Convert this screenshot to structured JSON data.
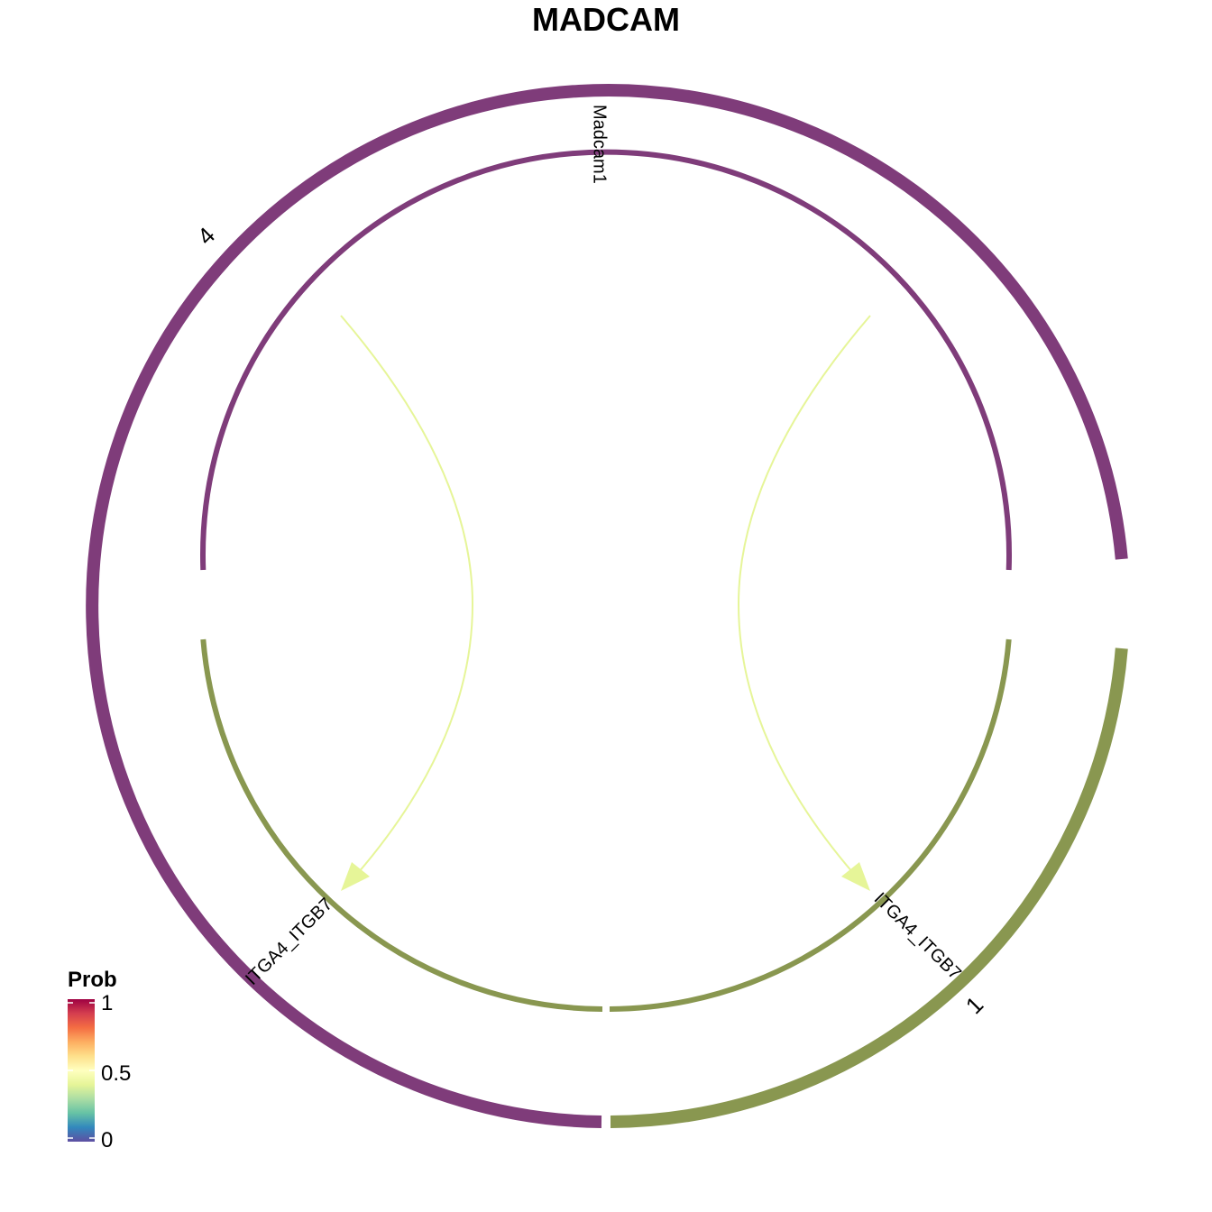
{
  "chart_data": {
    "type": "chord",
    "title": "MADCAM",
    "groups": [
      {
        "name": "4",
        "color": "#7f3c7a"
      },
      {
        "name": "1",
        "color": "#899750"
      }
    ],
    "nodes": [
      {
        "name": "Madcam1",
        "group": "4",
        "role": "ligand"
      },
      {
        "name": "ITGA4_ITGB7",
        "group": "4",
        "role": "receptor"
      },
      {
        "name": "ITGA4_ITGB7",
        "group": "1",
        "role": "receptor"
      }
    ],
    "links": [
      {
        "source": "Madcam1",
        "target_group": "4",
        "target": "ITGA4_ITGB7",
        "prob": 0.5
      },
      {
        "source": "Madcam1",
        "target_group": "1",
        "target": "ITGA4_ITGB7",
        "prob": 0.5
      }
    ],
    "legend": {
      "title": "Prob",
      "ticks": [
        "1",
        "0.5",
        "0"
      ],
      "range": [
        0,
        1
      ],
      "colors": [
        "#5e4fa2",
        "#3288bd",
        "#66c2a5",
        "#abdda4",
        "#e6f598",
        "#ffffbf",
        "#fee08b",
        "#fdae61",
        "#f46d43",
        "#d53e4f",
        "#9e0142"
      ]
    }
  }
}
